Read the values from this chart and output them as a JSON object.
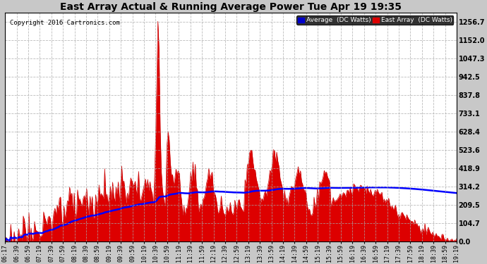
{
  "title": "East Array Actual & Running Average Power Tue Apr 19 19:35",
  "copyright": "Copyright 2016 Cartronics.com",
  "legend_avg": "Average  (DC Watts)",
  "legend_east": "East Array  (DC Watts)",
  "bg_color": "#c8c8c8",
  "plot_bg_color": "#ffffff",
  "grid_color": "#aaaaaa",
  "fill_color": "#dd0000",
  "avg_line_color": "#0000ff",
  "east_line_color": "#cc0000",
  "yticks": [
    0.0,
    104.7,
    209.5,
    314.2,
    418.9,
    523.6,
    628.4,
    733.1,
    837.8,
    942.5,
    1047.3,
    1152.0,
    1256.7
  ],
  "ylim": [
    0,
    1310
  ],
  "x_labels": [
    "06:17",
    "06:39",
    "06:59",
    "07:19",
    "07:39",
    "07:59",
    "08:19",
    "08:39",
    "08:59",
    "09:19",
    "09:39",
    "09:59",
    "10:19",
    "10:39",
    "10:59",
    "11:19",
    "11:39",
    "11:59",
    "12:19",
    "12:39",
    "12:59",
    "13:19",
    "13:39",
    "13:59",
    "14:19",
    "14:39",
    "14:59",
    "15:19",
    "15:39",
    "15:59",
    "16:19",
    "16:39",
    "16:59",
    "17:19",
    "17:39",
    "17:59",
    "18:19",
    "18:39",
    "18:59",
    "19:19"
  ]
}
